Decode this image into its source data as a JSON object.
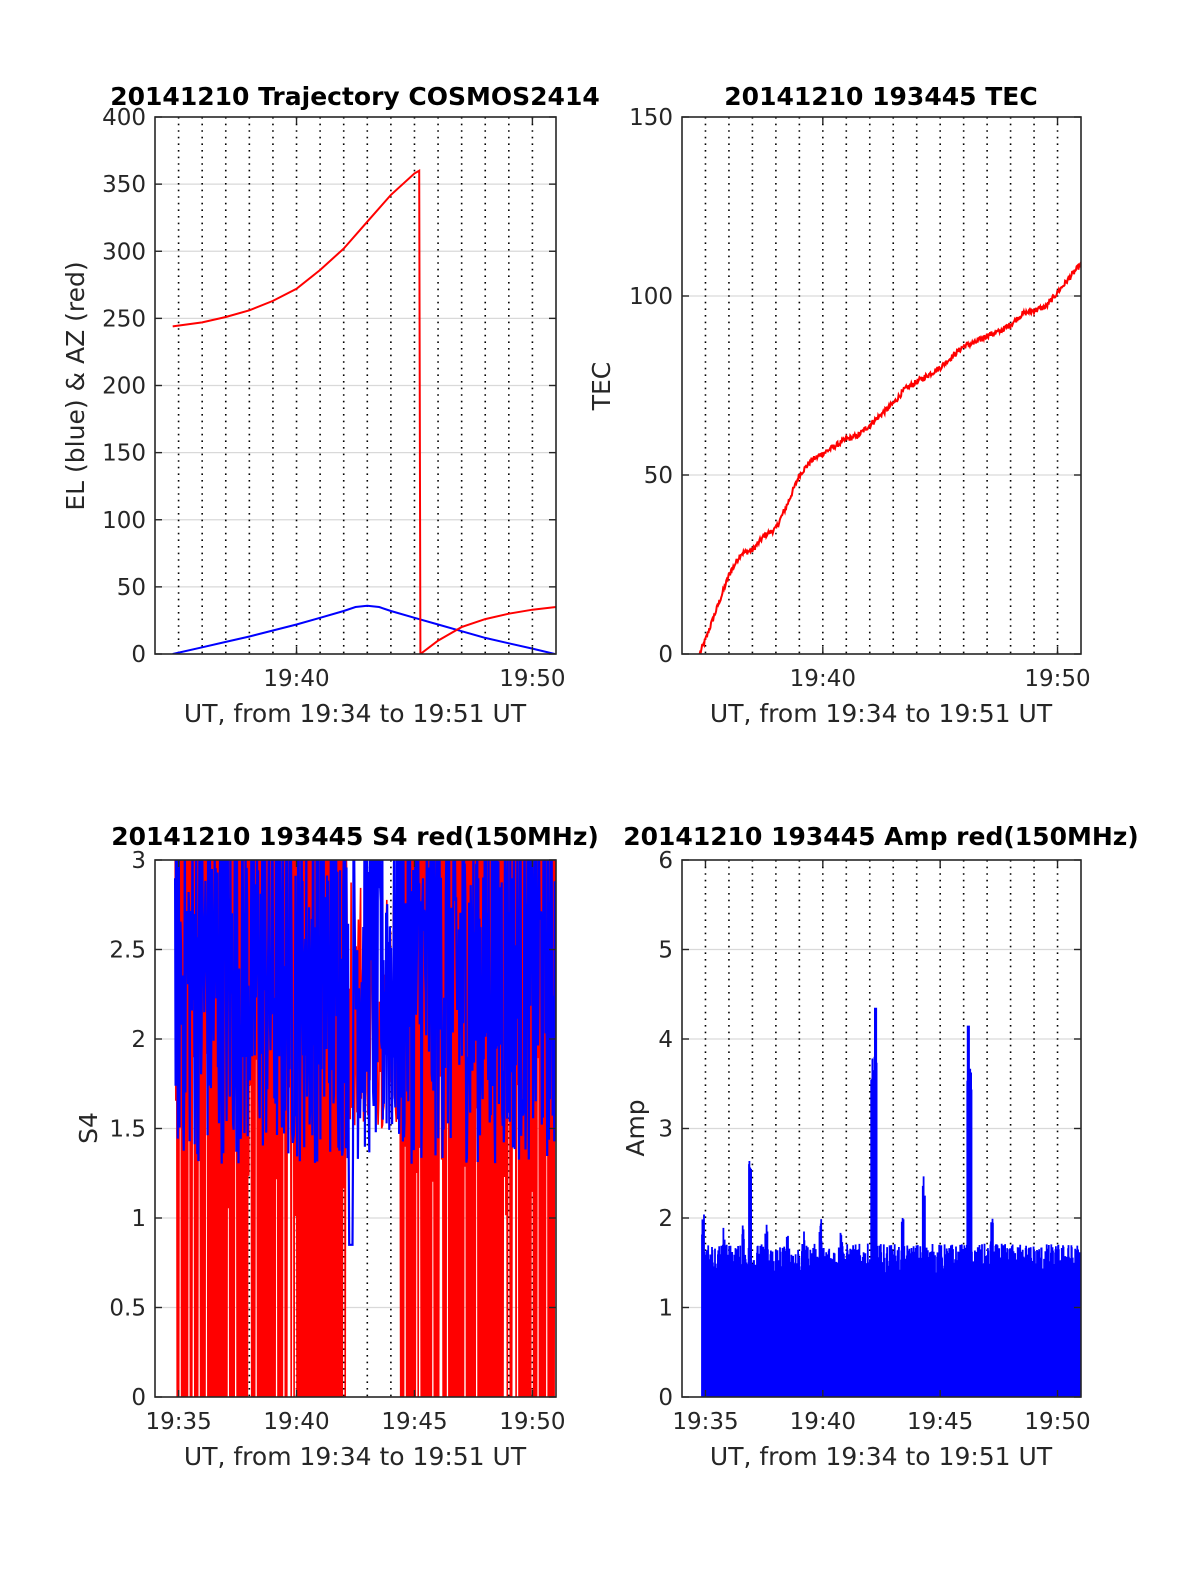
{
  "colors": {
    "el": "#0000ff",
    "az": "#ff0000",
    "tec": "#ff0000",
    "s4_red": "#ff0000",
    "s4_blue": "#0000ff",
    "amp": "#0000ff",
    "grid": "#d9d9d9",
    "axis": "#262626"
  },
  "chart_data": [
    {
      "type": "line",
      "title": "20141210 Trajectory COSMOS2414",
      "xlabel": "UT, from 19:34 to 19:51 UT",
      "ylabel": "EL (blue) & AZ (red)",
      "xlim_minutes": [
        34,
        51
      ],
      "xticks": [
        {
          "value": 40,
          "label": "19:40"
        },
        {
          "value": 50,
          "label": "19:50"
        }
      ],
      "vlines_minutes": [
        35,
        36,
        37,
        38,
        39,
        40,
        41,
        42,
        43,
        44,
        45,
        46,
        47,
        48,
        49,
        50
      ],
      "ylim": [
        0,
        400
      ],
      "yticks": [
        {
          "value": 0,
          "label": "0"
        },
        {
          "value": 50,
          "label": "50"
        },
        {
          "value": 100,
          "label": "100"
        },
        {
          "value": 150,
          "label": "150"
        },
        {
          "value": 200,
          "label": "200"
        },
        {
          "value": 250,
          "label": "250"
        },
        {
          "value": 300,
          "label": "300"
        },
        {
          "value": 350,
          "label": "350"
        },
        {
          "value": 400,
          "label": "400"
        }
      ],
      "grid": "horizontal",
      "series": [
        {
          "color": "#0000ff",
          "x": [
            34.75,
            36,
            37,
            38,
            39,
            40,
            41,
            42,
            42.5,
            43,
            43.5,
            44,
            45,
            46,
            47,
            48,
            49,
            50,
            50.95
          ],
          "y": [
            0,
            5,
            9,
            13,
            17.5,
            22,
            27,
            32,
            35,
            36,
            35,
            32,
            27,
            22,
            17,
            12,
            8,
            4,
            0
          ]
        },
        {
          "color": "#ff0000",
          "x": [
            34.75,
            36,
            37,
            38,
            39,
            40,
            41,
            42,
            43,
            44,
            45,
            45.2,
            45.25,
            46,
            47,
            48,
            49,
            50,
            51
          ],
          "y": [
            244,
            247,
            251,
            256,
            263,
            272,
            286,
            302,
            322,
            342,
            358,
            360,
            0,
            10,
            20,
            26,
            30,
            33,
            35
          ]
        }
      ]
    },
    {
      "type": "line",
      "title": "20141210 193445 TEC",
      "xlabel": "UT, from 19:34 to 19:51 UT",
      "ylabel": "TEC",
      "xlim_minutes": [
        34,
        51
      ],
      "xticks": [
        {
          "value": 40,
          "label": "19:40"
        },
        {
          "value": 50,
          "label": "19:50"
        }
      ],
      "vlines_minutes": [
        35,
        36,
        37,
        38,
        39,
        40,
        41,
        42,
        43,
        44,
        45,
        46,
        47,
        48,
        49,
        50
      ],
      "ylim": [
        0,
        150
      ],
      "yticks": [
        {
          "value": 0,
          "label": "0"
        },
        {
          "value": 50,
          "label": "50"
        },
        {
          "value": 100,
          "label": "100"
        },
        {
          "value": 150,
          "label": "150"
        }
      ],
      "grid": "horizontal",
      "series": [
        {
          "color": "#ff0000",
          "x": [
            34.75,
            35,
            35.5,
            36,
            36.5,
            37,
            37.5,
            38,
            38.5,
            39,
            39.5,
            40,
            40.5,
            41,
            41.5,
            42,
            42.5,
            43,
            43.5,
            44,
            44.5,
            45,
            45.5,
            46,
            46.5,
            47,
            47.5,
            48,
            48.5,
            49,
            49.5,
            50,
            50.5,
            51
          ],
          "y": [
            0,
            4,
            13,
            22,
            28,
            29,
            33,
            35,
            42,
            50,
            54,
            56,
            58,
            60,
            61,
            64,
            67,
            70,
            74,
            76,
            78,
            80,
            83,
            86,
            87,
            89,
            90,
            92,
            95,
            96,
            97,
            101,
            105,
            109
          ]
        }
      ]
    },
    {
      "type": "line",
      "title": "20141210 193445 S4 red(150MHz)",
      "xlabel": "UT, from 19:34 to 19:51 UT",
      "ylabel": "S4",
      "xlim_minutes": [
        34,
        51
      ],
      "xticks": [
        {
          "value": 35,
          "label": "19:35"
        },
        {
          "value": 40,
          "label": "19:40"
        },
        {
          "value": 45,
          "label": "19:45"
        },
        {
          "value": 50,
          "label": "19:50"
        }
      ],
      "vlines_minutes": [
        35,
        36,
        37,
        38,
        39,
        40,
        41,
        42,
        43,
        44,
        45,
        46,
        47,
        48,
        49,
        50
      ],
      "ylim": [
        0,
        3
      ],
      "yticks": [
        {
          "value": 0,
          "label": "0"
        },
        {
          "value": 0.5,
          "label": "0.5"
        },
        {
          "value": 1,
          "label": "1"
        },
        {
          "value": 1.5,
          "label": "1.5"
        },
        {
          "value": 2,
          "label": "2"
        },
        {
          "value": 2.5,
          "label": "2.5"
        },
        {
          "value": 3,
          "label": "3"
        }
      ],
      "grid": "horizontal",
      "red_oscillation": {
        "color": "#ff0000",
        "x_range": [
          34.85,
          50.95
        ],
        "min": 0,
        "max": 3,
        "gap_minutes": [
          42.1,
          44.4
        ]
      },
      "blue_series": {
        "color": "#0000ff",
        "x_range": [
          34.85,
          50.95
        ],
        "typical_min": 1.3,
        "typical_max": 3,
        "lowest_dip": 0.85
      }
    },
    {
      "type": "line",
      "title": "20141210 193445 Amp red(150MHz)",
      "xlabel": "UT, from 19:34 to 19:51 UT",
      "ylabel": "Amp",
      "xlim_minutes": [
        34,
        51
      ],
      "xticks": [
        {
          "value": 35,
          "label": "19:35"
        },
        {
          "value": 40,
          "label": "19:40"
        },
        {
          "value": 45,
          "label": "19:45"
        },
        {
          "value": 50,
          "label": "19:50"
        }
      ],
      "vlines_minutes": [
        35,
        36,
        37,
        38,
        39,
        40,
        41,
        42,
        43,
        44,
        45,
        46,
        47,
        48,
        49,
        50
      ],
      "ylim": [
        0,
        6
      ],
      "yticks": [
        {
          "value": 0,
          "label": "0"
        },
        {
          "value": 1,
          "label": "1"
        },
        {
          "value": 2,
          "label": "2"
        },
        {
          "value": 3,
          "label": "3"
        },
        {
          "value": 4,
          "label": "4"
        },
        {
          "value": 5,
          "label": "5"
        },
        {
          "value": 6,
          "label": "6"
        }
      ],
      "grid": "horizontal",
      "series": [
        {
          "color": "#0000ff",
          "x_range": [
            34.85,
            50.95
          ],
          "baseline": 1.4,
          "peaks": [
            {
              "x": 34.9,
              "y": 2.05
            },
            {
              "x": 35.8,
              "y": 1.9
            },
            {
              "x": 36.6,
              "y": 1.95
            },
            {
              "x": 36.9,
              "y": 2.75
            },
            {
              "x": 37.6,
              "y": 1.95
            },
            {
              "x": 38.5,
              "y": 1.85
            },
            {
              "x": 39.2,
              "y": 1.85
            },
            {
              "x": 39.9,
              "y": 2.0
            },
            {
              "x": 40.8,
              "y": 1.95
            },
            {
              "x": 42.1,
              "y": 3.9
            },
            {
              "x": 42.25,
              "y": 4.35
            },
            {
              "x": 43.4,
              "y": 2.0
            },
            {
              "x": 44.3,
              "y": 2.5
            },
            {
              "x": 46.2,
              "y": 4.15
            },
            {
              "x": 46.3,
              "y": 3.7
            },
            {
              "x": 47.2,
              "y": 2.0
            },
            {
              "x": 48.6,
              "y": 1.75
            },
            {
              "x": 50.3,
              "y": 1.55
            }
          ]
        }
      ]
    }
  ]
}
